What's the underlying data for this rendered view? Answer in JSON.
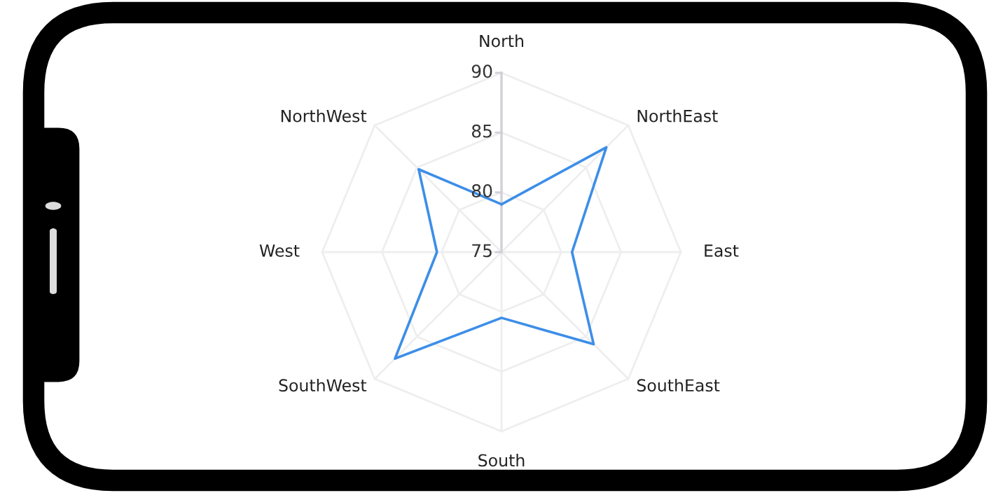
{
  "chart_data": {
    "type": "radar",
    "categories": [
      "North",
      "NorthEast",
      "East",
      "SouthEast",
      "South",
      "SouthWest",
      "West",
      "NorthWest"
    ],
    "series": [
      {
        "color": "#3d8ee8",
        "values": [
          79,
          87.4,
          80.9,
          85.9,
          80.5,
          87.6,
          80.4,
          84.8
        ]
      }
    ],
    "ylim": [
      75,
      90
    ],
    "yticks": [
      75,
      80,
      85,
      90
    ],
    "grid": true,
    "marker": "none",
    "line_style": "solid"
  }
}
